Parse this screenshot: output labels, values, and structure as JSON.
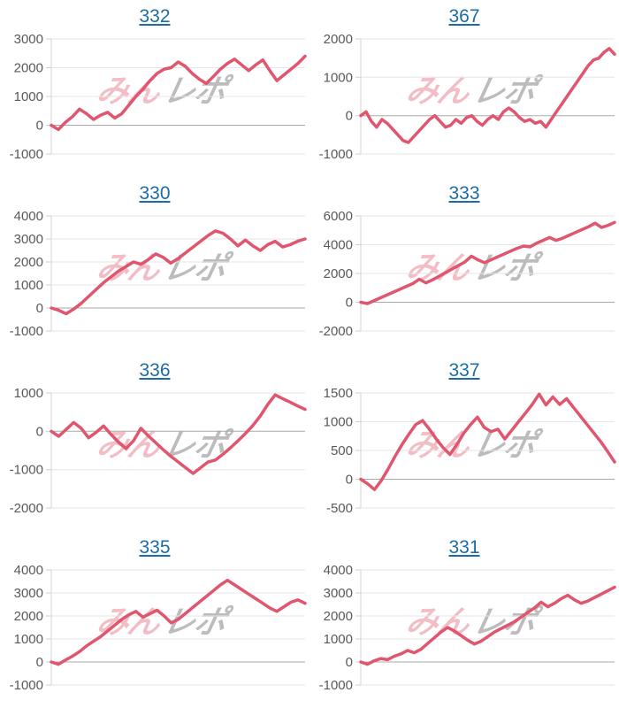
{
  "watermark": {
    "text_pink": "みん",
    "text_gray": "レポ",
    "pink_color": "#f3bdc6",
    "gray_color": "#bcbcbc"
  },
  "style": {
    "line_color": "#e0566e",
    "grid_color": "#e6e6e6",
    "zero_color": "#a9a9a9",
    "axis_color": "#d6d6d6",
    "tick_color": "#cfcfcf",
    "label_color": "#595959",
    "title_color": "#1d6da4"
  },
  "chart_data": [
    {
      "type": "line",
      "title": "332",
      "ylim": [
        -1000,
        3000
      ],
      "yticks": [
        3000,
        2000,
        1000,
        0,
        -1000
      ],
      "grid": true,
      "x_labels_visible": false,
      "values": [
        0,
        -150,
        100,
        300,
        560,
        400,
        200,
        350,
        450,
        250,
        400,
        700,
        1000,
        1250,
        1550,
        1800,
        1950,
        2000,
        2200,
        2050,
        1800,
        1600,
        1450,
        1700,
        1950,
        2150,
        2300,
        2100,
        1900,
        2100,
        2270,
        1900,
        1550,
        1750,
        1950,
        2150,
        2400
      ]
    },
    {
      "type": "line",
      "title": "367",
      "ylim": [
        -1000,
        2000
      ],
      "yticks": [
        2000,
        1000,
        0,
        -1000
      ],
      "grid": true,
      "x_labels_visible": false,
      "values": [
        0,
        100,
        -150,
        -300,
        -100,
        -200,
        -350,
        -500,
        -650,
        -700,
        -550,
        -400,
        -250,
        -100,
        0,
        -150,
        -300,
        -250,
        -100,
        -200,
        -50,
        0,
        -150,
        -250,
        -100,
        0,
        -100,
        100,
        200,
        100,
        -50,
        -150,
        -100,
        -200,
        -150,
        -300,
        -100,
        100,
        300,
        500,
        700,
        900,
        1100,
        1300,
        1450,
        1500,
        1650,
        1750,
        1600
      ]
    },
    {
      "type": "line",
      "title": "330",
      "ylim": [
        -1000,
        4000
      ],
      "yticks": [
        4000,
        3000,
        2000,
        1000,
        0,
        -1000
      ],
      "grid": true,
      "x_labels_visible": false,
      "values": [
        0,
        -100,
        -250,
        -50,
        200,
        500,
        800,
        1100,
        1350,
        1600,
        1800,
        2000,
        1900,
        2100,
        2350,
        2200,
        1950,
        2150,
        2400,
        2650,
        2900,
        3150,
        3350,
        3250,
        3000,
        2700,
        2950,
        2700,
        2500,
        2750,
        2900,
        2650,
        2750,
        2900,
        3000
      ]
    },
    {
      "type": "line",
      "title": "333",
      "ylim": [
        -2000,
        6000
      ],
      "yticks": [
        6000,
        4000,
        2000,
        0,
        -2000
      ],
      "grid": true,
      "x_labels_visible": false,
      "values": [
        0,
        -100,
        100,
        300,
        500,
        700,
        900,
        1100,
        1300,
        1600,
        1350,
        1550,
        1800,
        2050,
        2300,
        2550,
        2800,
        3200,
        2950,
        2750,
        2950,
        3150,
        3350,
        3550,
        3750,
        3900,
        3850,
        4100,
        4300,
        4500,
        4300,
        4450,
        4650,
        4850,
        5050,
        5250,
        5500,
        5200,
        5350,
        5550
      ]
    },
    {
      "type": "line",
      "title": "336",
      "ylim": [
        -2000,
        1000
      ],
      "yticks": [
        1000,
        0,
        -1000,
        -2000
      ],
      "grid": true,
      "x_labels_visible": false,
      "values": [
        0,
        -130,
        50,
        230,
        80,
        -170,
        -30,
        140,
        -80,
        -280,
        -450,
        -250,
        80,
        -120,
        -300,
        -480,
        -650,
        -800,
        -950,
        -1100,
        -950,
        -800,
        -750,
        -600,
        -430,
        -250,
        -60,
        150,
        400,
        700,
        950,
        850,
        760,
        660,
        570
      ]
    },
    {
      "type": "line",
      "title": "337",
      "ylim": [
        -500,
        1500
      ],
      "yticks": [
        1500,
        1000,
        500,
        0,
        -500
      ],
      "grid": true,
      "x_labels_visible": false,
      "values": [
        0,
        -80,
        -180,
        -20,
        180,
        400,
        600,
        780,
        950,
        1020,
        870,
        700,
        550,
        430,
        600,
        800,
        950,
        1080,
        900,
        830,
        870,
        700,
        850,
        1000,
        1150,
        1300,
        1480,
        1290,
        1430,
        1300,
        1400,
        1250,
        1100,
        950,
        800,
        650,
        480,
        300
      ]
    },
    {
      "type": "line",
      "title": "335",
      "ylim": [
        -1000,
        4000
      ],
      "yticks": [
        4000,
        3000,
        2000,
        1000,
        0,
        -1000
      ],
      "grid": true,
      "x_labels_visible": false,
      "values": [
        0,
        -100,
        80,
        250,
        450,
        700,
        900,
        1100,
        1350,
        1600,
        1850,
        2050,
        2200,
        1950,
        2100,
        2250,
        2000,
        1700,
        1850,
        2100,
        2350,
        2600,
        2850,
        3100,
        3350,
        3550,
        3350,
        3150,
        2950,
        2750,
        2550,
        2350,
        2200,
        2400,
        2600,
        2700,
        2550
      ]
    },
    {
      "type": "line",
      "title": "331",
      "ylim": [
        -1000,
        4000
      ],
      "yticks": [
        4000,
        3000,
        2000,
        1000,
        0,
        -1000
      ],
      "grid": true,
      "x_labels_visible": false,
      "values": [
        0,
        -100,
        50,
        150,
        100,
        250,
        350,
        500,
        400,
        550,
        800,
        1050,
        1300,
        1500,
        1350,
        1150,
        950,
        780,
        900,
        1100,
        1300,
        1450,
        1600,
        1750,
        1950,
        2150,
        2350,
        2600,
        2400,
        2550,
        2750,
        2900,
        2700,
        2550,
        2650,
        2800,
        2950,
        3100,
        3250
      ]
    }
  ]
}
